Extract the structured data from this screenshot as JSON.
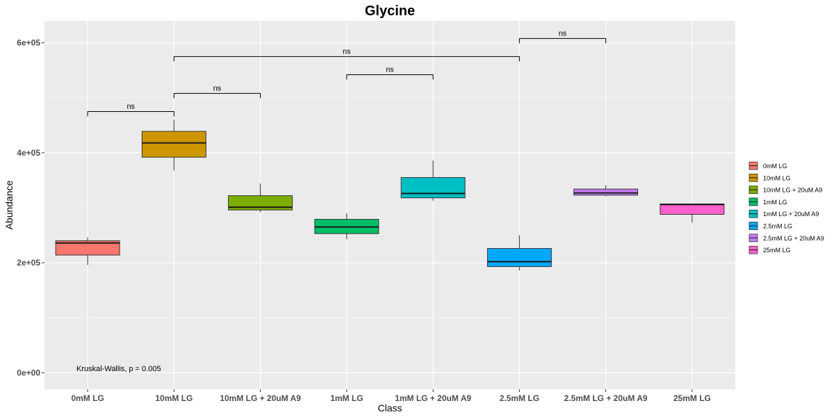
{
  "chart_data": {
    "type": "box",
    "title": "Glycine",
    "xlabel": "Class",
    "ylabel": "Abundance",
    "ylim": [
      -30000,
      640000
    ],
    "yticks": [
      0,
      200000,
      400000,
      600000
    ],
    "ytick_labels": [
      "0e+00",
      "2e+05",
      "4e+05",
      "6e+05"
    ],
    "grid": true,
    "legend_position": "right",
    "categories": [
      "0mM LG",
      "10mM LG",
      "10mM LG + 20uM A9",
      "1mM LG",
      "1mM LG + 20uM A9",
      "2.5mM LG",
      "2.5mM LG + 20uM A9",
      "25mM LG"
    ],
    "boxes": [
      {
        "name": "0mM LG",
        "color": "#F8766D",
        "min": 196000,
        "q1": 214000,
        "median": 236000,
        "q3": 240000,
        "max": 246000
      },
      {
        "name": "10mM LG",
        "color": "#CD9600",
        "min": 368000,
        "q1": 392000,
        "median": 418000,
        "q3": 439000,
        "max": 460000
      },
      {
        "name": "10mM LG + 20uM A9",
        "color": "#7CAE00",
        "min": 292000,
        "q1": 296000,
        "median": 301000,
        "q3": 322000,
        "max": 344000
      },
      {
        "name": "1mM LG",
        "color": "#00BE67",
        "min": 243000,
        "q1": 253000,
        "median": 265000,
        "q3": 279000,
        "max": 290000
      },
      {
        "name": "1mM LG + 20uM A9",
        "color": "#00BFC4",
        "min": 313000,
        "q1": 318000,
        "median": 326000,
        "q3": 355000,
        "max": 386000
      },
      {
        "name": "2.5mM LG",
        "color": "#00A9FF",
        "min": 186000,
        "q1": 193000,
        "median": 202000,
        "q3": 226000,
        "max": 250000
      },
      {
        "name": "2.5mM LG + 20uM A9",
        "color": "#C77CFF",
        "min": 321000,
        "q1": 323000,
        "median": 327000,
        "q3": 334000,
        "max": 341000
      },
      {
        "name": "25mM LG",
        "color": "#FF61CC",
        "min": 273000,
        "q1": 288000,
        "median": 306000,
        "q3": 307000,
        "max": 307000
      }
    ],
    "comparisons": [
      {
        "from": 0,
        "to": 1,
        "y": 475000,
        "label": "ns"
      },
      {
        "from": 1,
        "to": 2,
        "y": 508000,
        "label": "ns"
      },
      {
        "from": 3,
        "to": 4,
        "y": 542000,
        "label": "ns"
      },
      {
        "from": 1,
        "to": 5,
        "y": 575000,
        "label": "ns"
      },
      {
        "from": 5,
        "to": 6,
        "y": 608000,
        "label": "ns"
      }
    ],
    "annotation": {
      "text": "Kruskal-Wallis, p = 0.005",
      "x_index": 0.18,
      "y": 3000
    }
  }
}
